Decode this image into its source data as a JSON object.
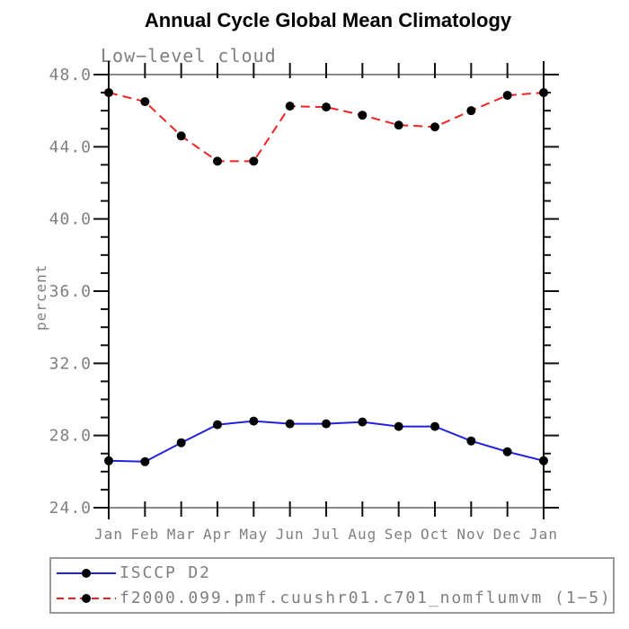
{
  "title": "Annual Cycle Global Mean Climatology",
  "subtitle": "Low−level cloud",
  "ylabel": "percent",
  "colors": {
    "title_text": "#000000",
    "muted_text": "#7f7f7f",
    "axis_vertical": "#111111",
    "axis_horizontal": "#8a8a8a",
    "series_blue": "#2222dd",
    "series_red": "#ee2222",
    "marker_black": "#000000",
    "legend_border": "#9a9a9a",
    "background": "#ffffff"
  },
  "legend": {
    "items": [
      {
        "label": "ISCCP D2",
        "line_style": "solid",
        "color": "#2222dd",
        "marker": "black-dot"
      },
      {
        "label": "f2000.099.pmf.cuushr01.c701_nomflumvm (1−5)",
        "line_style": "dashed",
        "color": "#ee2222",
        "marker": "black-dot"
      }
    ]
  },
  "chart_data": {
    "type": "line",
    "title": "Annual Cycle Global Mean Climatology",
    "subtitle": "Low−level cloud",
    "xlabel": "",
    "ylabel": "percent",
    "x_ticks": [
      "Jan",
      "Feb",
      "Mar",
      "Apr",
      "May",
      "Jun",
      "Jul",
      "Aug",
      "Sep",
      "Oct",
      "Nov",
      "Dec",
      "Jan"
    ],
    "ylim": [
      24,
      48
    ],
    "y_major_ticks": [
      24,
      28,
      32,
      36,
      40,
      44,
      48
    ],
    "y_tick_labels": [
      "24.0",
      "28.0",
      "32.0",
      "36.0",
      "40.0",
      "44.0",
      "48.0"
    ],
    "y_minor_tick_interval": 1,
    "grid": false,
    "legend_position": "bottom",
    "series": [
      {
        "name": "ISCCP D2",
        "line": "solid",
        "color": "#2222dd",
        "marker_color": "#000000",
        "values": [
          26.6,
          26.55,
          27.6,
          28.6,
          28.8,
          28.65,
          28.65,
          28.75,
          28.5,
          28.5,
          27.7,
          27.1,
          26.6
        ]
      },
      {
        "name": "f2000.099.pmf.cuushr01.c701_nomflumvm (1−5)",
        "line": "dashed",
        "color": "#ee2222",
        "marker_color": "#000000",
        "values": [
          47.0,
          46.5,
          44.6,
          43.2,
          43.2,
          46.25,
          46.2,
          45.75,
          45.2,
          45.1,
          46.0,
          46.85,
          47.0
        ]
      }
    ]
  }
}
